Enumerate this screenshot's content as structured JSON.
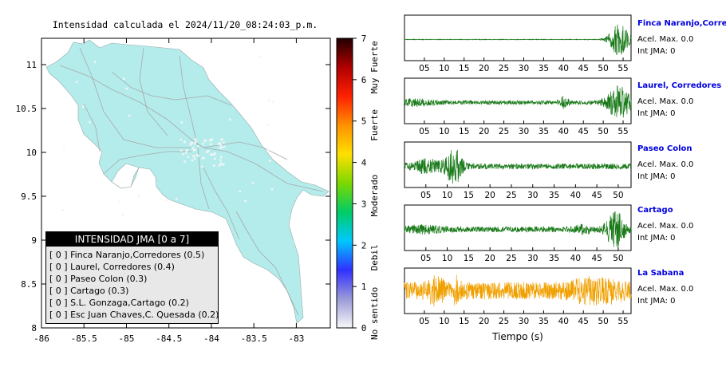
{
  "map": {
    "title": "Intensidad calculada el 2024/11/20_08:24:03_p.m.",
    "x_ticks": [
      "-86",
      "-85.5",
      "-85",
      "-84.5",
      "-84",
      "-83.5",
      "-83"
    ],
    "y_ticks": [
      "11",
      "10.5",
      "10",
      "9.5",
      "9",
      "8.5",
      "8"
    ],
    "colors": {
      "land": "#b4ecec",
      "roads": "#a8a8a8"
    }
  },
  "colorbar": {
    "ticks": [
      "7",
      "6",
      "5",
      "4",
      "3",
      "2",
      "1",
      "0"
    ],
    "categories": [
      "Muy Fuerte",
      "Fuerte",
      "Moderado",
      "Debil",
      "No sentido"
    ],
    "stops": [
      "#f8f8f8",
      "#9a9ad8",
      "#3030ff",
      "#00c8ff",
      "#00cc66",
      "#7cd800",
      "#ffe000",
      "#ff9000",
      "#ff2000",
      "#b00000",
      "#200000"
    ]
  },
  "legend": {
    "title": "INTENSIDAD JMA [0 a 7]",
    "items": [
      {
        "intensity": "[ 0 ]",
        "label": "Finca Naranjo,Corredores (0.5)"
      },
      {
        "intensity": "[ 0 ]",
        "label": "Laurel, Corredores (0.4)"
      },
      {
        "intensity": "[ 0 ]",
        "label": "Paseo Colon (0.3)"
      },
      {
        "intensity": "[ 0 ]",
        "label": "Cartago (0.3)"
      },
      {
        "intensity": "[ 0 ]",
        "label": "S.L. Gonzaga,Cartago (0.2)"
      },
      {
        "intensity": "[ 0 ]",
        "label": "Esc Juan Chaves,C. Quesada (0.2)"
      }
    ]
  },
  "waveforms": {
    "x_ticks": [
      "05",
      "10",
      "15",
      "20",
      "25",
      "30",
      "35",
      "40",
      "45",
      "50",
      "55"
    ],
    "xlabel": "Tiempo (s)",
    "stations": [
      {
        "name": "Finca Naranjo,Corredor",
        "accel": "Acel. Max. 0.0",
        "jma": "Int JMA: 0",
        "color": "#1a7a1a"
      },
      {
        "name": "Laurel, Corredores",
        "accel": "Acel. Max. 0.0",
        "jma": "Int JMA: 0",
        "color": "#1a7a1a"
      },
      {
        "name": "Paseo Colon",
        "accel": "Acel. Max. 0.0",
        "jma": "Int JMA: 0",
        "color": "#1a7a1a"
      },
      {
        "name": "Cartago",
        "accel": "Acel. Max. 0.0",
        "jma": "Int JMA: 0",
        "color": "#1a7a1a"
      },
      {
        "name": "La Sabana",
        "accel": "Acel. Max. 0.0",
        "jma": "Int JMA: 0",
        "color": "#f0a000"
      }
    ]
  },
  "chart_data": [
    {
      "type": "map",
      "title": "Intensidad calculada el 2024/11/20_08:24:03_p.m.",
      "xlim": [
        -86,
        -82.6
      ],
      "ylim": [
        8,
        11.3
      ],
      "x_ticks": [
        -86,
        -85.5,
        -85,
        -84.5,
        -84,
        -83.5,
        -83
      ],
      "y_ticks": [
        8,
        8.5,
        9,
        9.5,
        10,
        10.5,
        11
      ],
      "colorbar_range": [
        0,
        7
      ]
    },
    {
      "type": "line",
      "title": "",
      "xlabel": "Tiempo (s)",
      "xlim": [
        0,
        57
      ],
      "series": [
        {
          "name": "Finca Naranjo,Corredor"
        },
        {
          "name": "Laurel, Corredores"
        },
        {
          "name": "Paseo Colon"
        },
        {
          "name": "Cartago"
        },
        {
          "name": "La Sabana"
        }
      ]
    }
  ]
}
